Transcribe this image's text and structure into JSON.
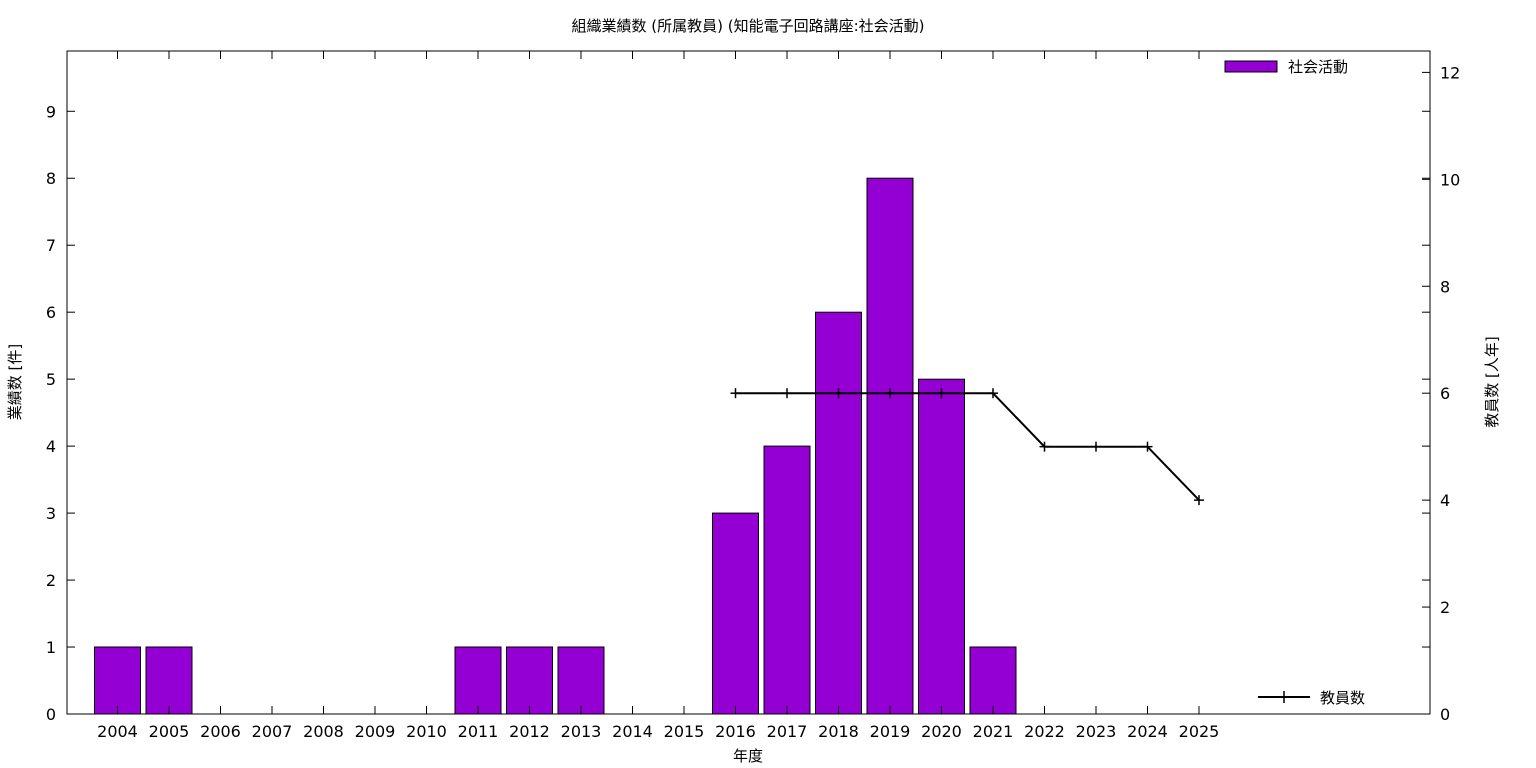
{
  "chart_data": {
    "type": "bar",
    "title": "組織業績数 (所属教員) (知能電子回路講座:社会活動)",
    "xlabel": "年度",
    "ylabel": "業績数 [件]",
    "y2label": "教員数 [人年]",
    "categories": [
      "2004",
      "2005",
      "2006",
      "2007",
      "2008",
      "2009",
      "2010",
      "2011",
      "2012",
      "2013",
      "2014",
      "2015",
      "2016",
      "2017",
      "2018",
      "2019",
      "2020",
      "2021",
      "2022",
      "2023",
      "2024",
      "2025"
    ],
    "series": [
      {
        "name": "社会活動",
        "type": "bar",
        "axis": "left",
        "color": "#9400d3",
        "values": [
          1,
          1,
          0,
          0,
          0,
          0,
          0,
          1,
          1,
          1,
          0,
          0,
          3,
          4,
          6,
          8,
          5,
          1,
          0,
          0,
          0,
          0
        ]
      },
      {
        "name": "教員数",
        "type": "line",
        "axis": "right",
        "color": "#000000",
        "values": [
          null,
          null,
          null,
          null,
          null,
          null,
          null,
          null,
          null,
          null,
          null,
          null,
          6,
          6,
          6,
          6,
          6,
          6,
          5,
          5,
          5,
          4
        ]
      }
    ],
    "ylim": [
      0,
      9.9
    ],
    "y2lim": [
      0,
      12.4
    ],
    "yticks": [
      "0",
      "1",
      "2",
      "3",
      "4",
      "5",
      "6",
      "7",
      "8",
      "9"
    ],
    "y2ticks": [
      "0",
      "2",
      "4",
      "6",
      "8",
      "10",
      "12"
    ],
    "grid": false,
    "legend": [
      "top-right",
      "bottom-right"
    ]
  }
}
